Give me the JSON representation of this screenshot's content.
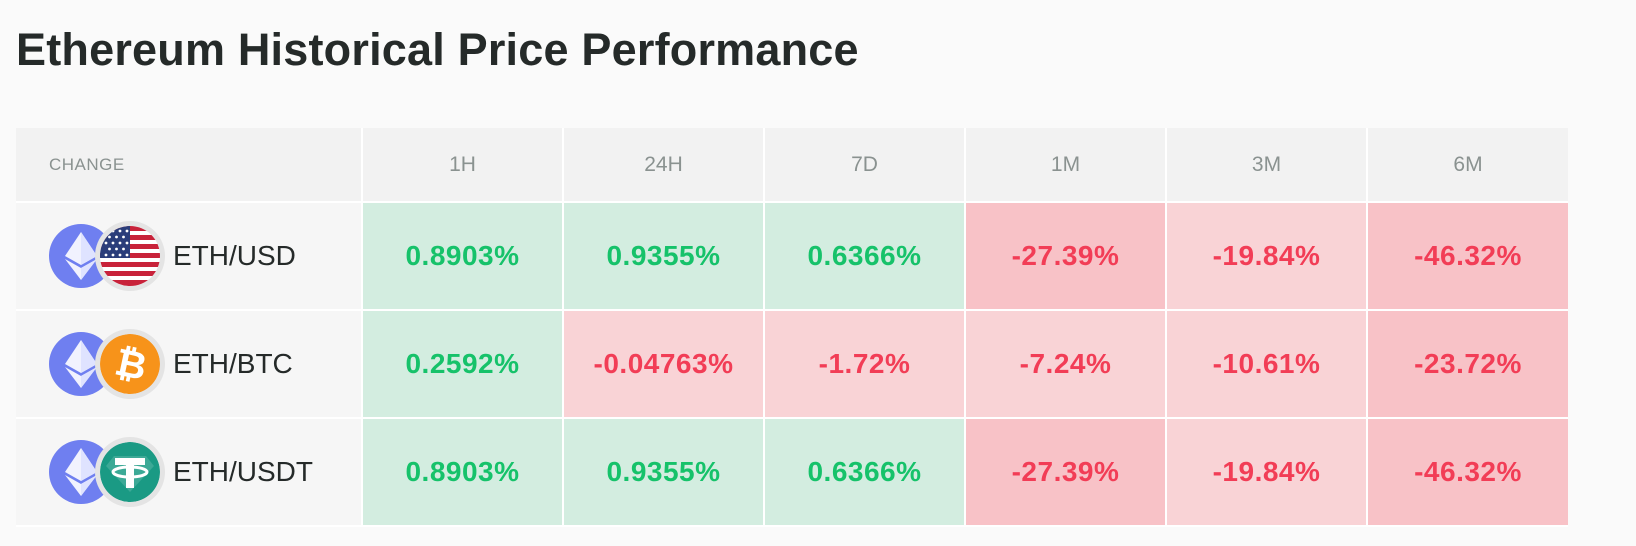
{
  "title": "Ethereum Historical Price Performance",
  "table": {
    "headers": [
      "CHANGE",
      "1H",
      "24H",
      "7D",
      "1M",
      "3M",
      "6M"
    ],
    "rows": [
      {
        "pair": "ETH/USD",
        "base_icon": "ethereum-icon",
        "quote_icon": "us-flag-icon",
        "values": [
          "0.8903%",
          "0.9355%",
          "0.6366%",
          "-27.39%",
          "-19.84%",
          "-46.32%"
        ]
      },
      {
        "pair": "ETH/BTC",
        "base_icon": "ethereum-icon",
        "quote_icon": "bitcoin-icon",
        "values": [
          "0.2592%",
          "-0.04763%",
          "-1.72%",
          "-7.24%",
          "-10.61%",
          "-23.72%"
        ]
      },
      {
        "pair": "ETH/USDT",
        "base_icon": "ethereum-icon",
        "quote_icon": "tether-icon",
        "values": [
          "0.8903%",
          "0.9355%",
          "0.6366%",
          "-27.39%",
          "-19.84%",
          "-46.32%"
        ]
      }
    ]
  },
  "colors": {
    "positive_text": "#16c26a",
    "positive_bg": "#d3ede0",
    "negative_text": "#f23d56",
    "negative_bg_light": "#f9d3d6",
    "negative_bg_strong": "#f8c2c7",
    "eth_icon": "#6f7ff0",
    "bitcoin_icon": "#f7931a",
    "tether_icon": "#1a9a84"
  }
}
